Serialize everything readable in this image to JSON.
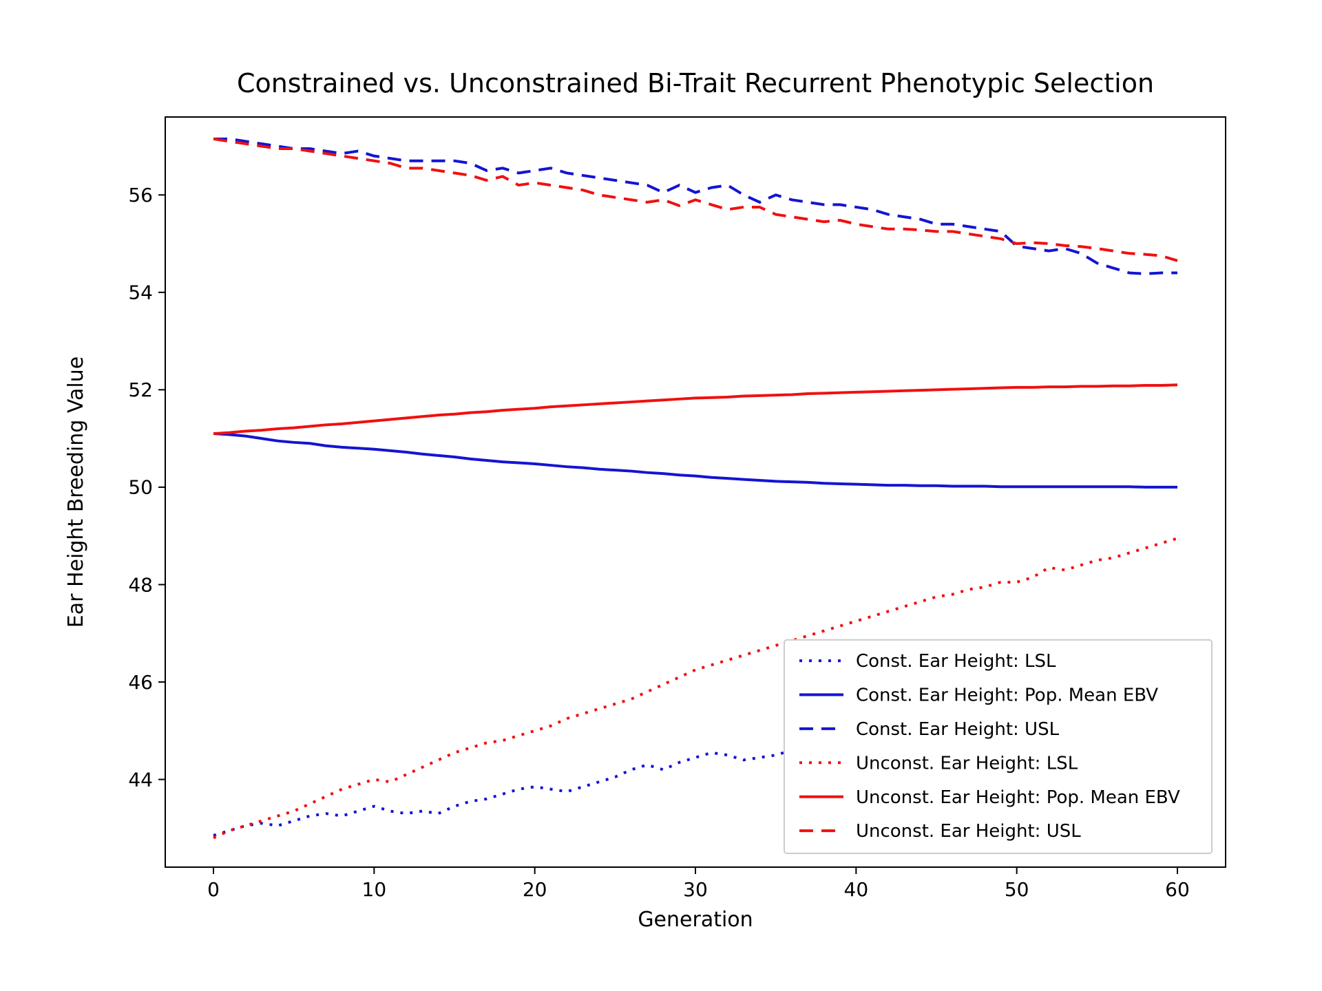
{
  "chart": {
    "type": "line",
    "title": "Constrained vs. Unconstrained Bi-Trait Recurrent Phenotypic Selection",
    "title_fontsize": 38,
    "xlabel": "Generation",
    "ylabel": "Ear Height Breeding Value",
    "label_fontsize": 30,
    "tick_fontsize": 28,
    "legend_fontsize": 26,
    "background_color": "#ffffff",
    "axis_color": "#000000",
    "xlim": [
      -3,
      63
    ],
    "ylim": [
      42.2,
      57.6
    ],
    "xticks": [
      0,
      10,
      20,
      30,
      40,
      50,
      60
    ],
    "yticks": [
      44,
      46,
      48,
      50,
      52,
      54,
      56
    ],
    "line_width": 4,
    "legend": {
      "position": "lower-right",
      "border_color": "#cccccc",
      "bg_color": "#ffffff",
      "items": [
        {
          "label": "Const. Ear Height: LSL",
          "color": "#1414d2",
          "dash": "dot"
        },
        {
          "label": "Const. Ear Height: Pop. Mean EBV",
          "color": "#1414d2",
          "dash": "solid"
        },
        {
          "label": "Const. Ear Height: USL",
          "color": "#1414d2",
          "dash": "dash"
        },
        {
          "label": "Unconst. Ear Height: LSL",
          "color": "#f01010",
          "dash": "dot"
        },
        {
          "label": "Unconst. Ear Height: Pop. Mean EBV",
          "color": "#f01010",
          "dash": "solid"
        },
        {
          "label": "Unconst. Ear Height: USL",
          "color": "#f01010",
          "dash": "dash"
        }
      ]
    },
    "x": [
      0,
      1,
      2,
      3,
      4,
      5,
      6,
      7,
      8,
      9,
      10,
      11,
      12,
      13,
      14,
      15,
      16,
      17,
      18,
      19,
      20,
      21,
      22,
      23,
      24,
      25,
      26,
      27,
      28,
      29,
      30,
      31,
      32,
      33,
      34,
      35,
      36,
      37,
      38,
      39,
      40,
      41,
      42,
      43,
      44,
      45,
      46,
      47,
      48,
      49,
      50,
      51,
      52,
      53,
      54,
      55,
      56,
      57,
      58,
      59,
      60
    ],
    "series": [
      {
        "id": "const-lsl",
        "color": "#1414d2",
        "dash": "dot",
        "y": [
          42.85,
          42.95,
          43.05,
          43.1,
          43.05,
          43.15,
          43.25,
          43.3,
          43.25,
          43.35,
          43.45,
          43.35,
          43.3,
          43.35,
          43.3,
          43.45,
          43.55,
          43.6,
          43.7,
          43.8,
          43.85,
          43.8,
          43.75,
          43.85,
          43.95,
          44.05,
          44.2,
          44.3,
          44.2,
          44.35,
          44.45,
          44.55,
          44.5,
          44.4,
          44.45,
          44.5,
          44.6,
          44.7,
          44.85,
          44.95,
          45.05,
          45.1,
          45.2,
          45.3,
          45.35,
          45.3,
          45.35,
          45.4,
          45.5,
          45.55,
          45.65,
          45.75,
          45.8,
          45.85,
          45.9,
          45.95,
          46.0,
          46.05,
          46.1,
          46.15,
          46.2
        ]
      },
      {
        "id": "const-mean",
        "color": "#1414d2",
        "dash": "solid",
        "y": [
          51.1,
          51.08,
          51.05,
          51.0,
          50.95,
          50.92,
          50.9,
          50.85,
          50.82,
          50.8,
          50.78,
          50.75,
          50.72,
          50.68,
          50.65,
          50.62,
          50.58,
          50.55,
          50.52,
          50.5,
          50.48,
          50.45,
          50.42,
          50.4,
          50.37,
          50.35,
          50.33,
          50.3,
          50.28,
          50.25,
          50.23,
          50.2,
          50.18,
          50.16,
          50.14,
          50.12,
          50.11,
          50.1,
          50.08,
          50.07,
          50.06,
          50.05,
          50.04,
          50.04,
          50.03,
          50.03,
          50.02,
          50.02,
          50.02,
          50.01,
          50.01,
          50.01,
          50.01,
          50.01,
          50.01,
          50.01,
          50.01,
          50.01,
          50.0,
          50.0,
          50.0
        ]
      },
      {
        "id": "const-usl",
        "color": "#1414d2",
        "dash": "dash",
        "y": [
          57.15,
          57.15,
          57.1,
          57.05,
          57.0,
          56.95,
          56.95,
          56.9,
          56.85,
          56.9,
          56.8,
          56.75,
          56.7,
          56.7,
          56.7,
          56.7,
          56.65,
          56.5,
          56.55,
          56.45,
          56.5,
          56.55,
          56.45,
          56.4,
          56.35,
          56.3,
          56.25,
          56.2,
          56.05,
          56.2,
          56.05,
          56.15,
          56.2,
          56.0,
          55.85,
          56.0,
          55.9,
          55.85,
          55.8,
          55.8,
          55.75,
          55.7,
          55.6,
          55.55,
          55.5,
          55.4,
          55.4,
          55.35,
          55.3,
          55.25,
          54.95,
          54.9,
          54.85,
          54.9,
          54.8,
          54.6,
          54.5,
          54.4,
          54.38,
          54.4,
          54.4
        ]
      },
      {
        "id": "unconst-lsl",
        "color": "#f01010",
        "dash": "dot",
        "y": [
          42.8,
          42.95,
          43.05,
          43.15,
          43.25,
          43.35,
          43.5,
          43.65,
          43.8,
          43.9,
          44.0,
          43.95,
          44.1,
          44.25,
          44.4,
          44.55,
          44.65,
          44.75,
          44.8,
          44.9,
          45.0,
          45.1,
          45.25,
          45.35,
          45.45,
          45.55,
          45.65,
          45.8,
          45.95,
          46.1,
          46.25,
          46.35,
          46.45,
          46.55,
          46.65,
          46.75,
          46.85,
          46.95,
          47.05,
          47.15,
          47.25,
          47.35,
          47.45,
          47.55,
          47.65,
          47.75,
          47.8,
          47.9,
          47.95,
          48.05,
          48.05,
          48.15,
          48.35,
          48.3,
          48.4,
          48.5,
          48.55,
          48.65,
          48.75,
          48.85,
          48.95
        ]
      },
      {
        "id": "unconst-mean",
        "color": "#f01010",
        "dash": "solid",
        "y": [
          51.1,
          51.12,
          51.15,
          51.17,
          51.2,
          51.22,
          51.25,
          51.28,
          51.3,
          51.33,
          51.36,
          51.39,
          51.42,
          51.45,
          51.48,
          51.5,
          51.53,
          51.55,
          51.58,
          51.6,
          51.62,
          51.65,
          51.67,
          51.69,
          51.71,
          51.73,
          51.75,
          51.77,
          51.79,
          51.81,
          51.83,
          51.84,
          51.85,
          51.87,
          51.88,
          51.89,
          51.9,
          51.92,
          51.93,
          51.94,
          51.95,
          51.96,
          51.97,
          51.98,
          51.99,
          52.0,
          52.01,
          52.02,
          52.03,
          52.04,
          52.05,
          52.05,
          52.06,
          52.06,
          52.07,
          52.07,
          52.08,
          52.08,
          52.09,
          52.09,
          52.1
        ]
      },
      {
        "id": "unconst-usl",
        "color": "#f01010",
        "dash": "dash",
        "y": [
          57.15,
          57.1,
          57.05,
          57.0,
          56.95,
          56.95,
          56.9,
          56.85,
          56.8,
          56.75,
          56.7,
          56.65,
          56.55,
          56.55,
          56.5,
          56.45,
          56.4,
          56.3,
          56.38,
          56.2,
          56.25,
          56.2,
          56.15,
          56.1,
          56.0,
          55.95,
          55.9,
          55.85,
          55.9,
          55.78,
          55.9,
          55.8,
          55.7,
          55.75,
          55.75,
          55.6,
          55.55,
          55.5,
          55.45,
          55.48,
          55.4,
          55.35,
          55.3,
          55.3,
          55.28,
          55.25,
          55.25,
          55.2,
          55.15,
          55.1,
          55.0,
          55.02,
          55.0,
          54.96,
          54.94,
          54.9,
          54.85,
          54.8,
          54.78,
          54.75,
          54.65
        ]
      }
    ]
  }
}
